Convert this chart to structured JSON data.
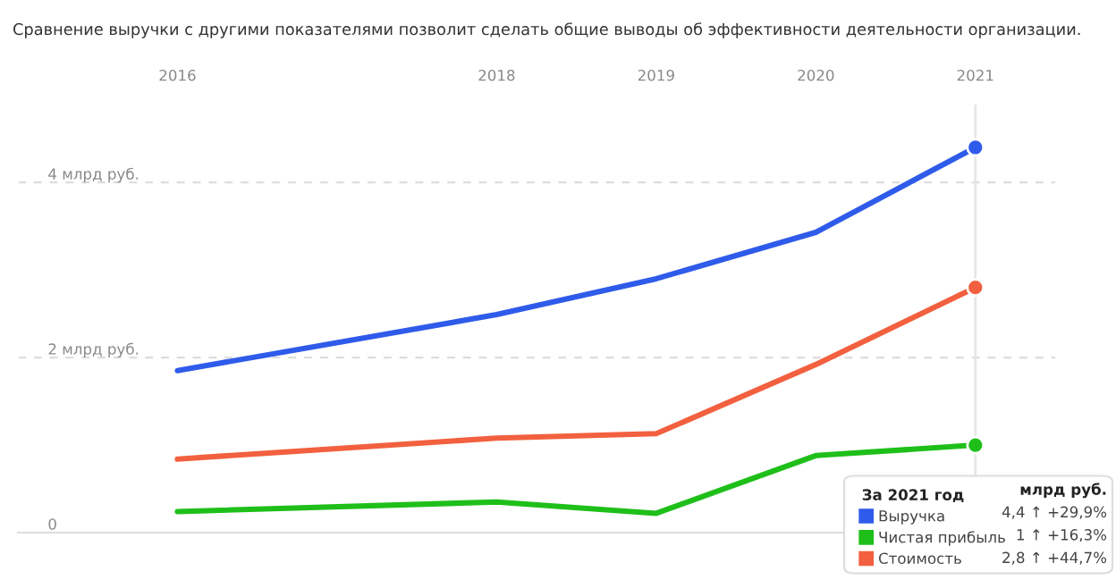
{
  "chart_data": {
    "type": "line",
    "title": "Сравнение выручки с другими показателями позволит сделать общие выводы об эффективности деятельности организации.",
    "x": [
      2016,
      2018,
      2019,
      2020,
      2021
    ],
    "xlim": [
      2015,
      2021.5
    ],
    "xticks": [
      2016,
      2018,
      2019,
      2020,
      2021
    ],
    "ylim": [
      0,
      4.9
    ],
    "yticks": [
      {
        "value": 0,
        "label": "0"
      },
      {
        "value": 2,
        "label": "2 млрд руб."
      },
      {
        "value": 4,
        "label": "4 млрд руб."
      }
    ],
    "grid": "y",
    "marker": "none",
    "line_style": "solid",
    "legend": "bottom right",
    "legend_title": "За 2021 год",
    "series": [
      {
        "name": "Выручка",
        "color": "#2f5bea",
        "values": [
          1.85,
          2.49,
          2.9,
          3.43,
          4.4
        ]
      },
      {
        "name": "Чистая прибыль",
        "color": "#1fbf1a",
        "values": [
          0.24,
          0.35,
          0.22,
          0.88,
          1.0
        ]
      },
      {
        "name": "Стоимость",
        "color": "#f2603f",
        "values": [
          0.84,
          1.08,
          1.13,
          1.92,
          2.8
        ]
      },
      {
        "type": "scatter",
        "marker": "circle",
        "color": "#2f5bea",
        "values": [
          null,
          null,
          null,
          null,
          4.4
        ]
      },
      {
        "type": "scatter",
        "marker": "circle",
        "color": "#1fbf1a",
        "values": [
          null,
          null,
          null,
          null,
          1.0
        ]
      },
      {
        "type": "scatter",
        "marker": "circle",
        "color": "#f2603f",
        "values": [
          null,
          null,
          null,
          null,
          2.8
        ]
      }
    ],
    "ref_lines": [
      {
        "axis": "x",
        "value": 2021,
        "color": "#e6e6e6",
        "line_style": "solid"
      }
    ],
    "annotations": [
      "млрд руб.",
      "4,4 ↑ +29,9%",
      "1 ↑ +16,3%",
      "2,8 ↑ +44,7%"
    ]
  }
}
